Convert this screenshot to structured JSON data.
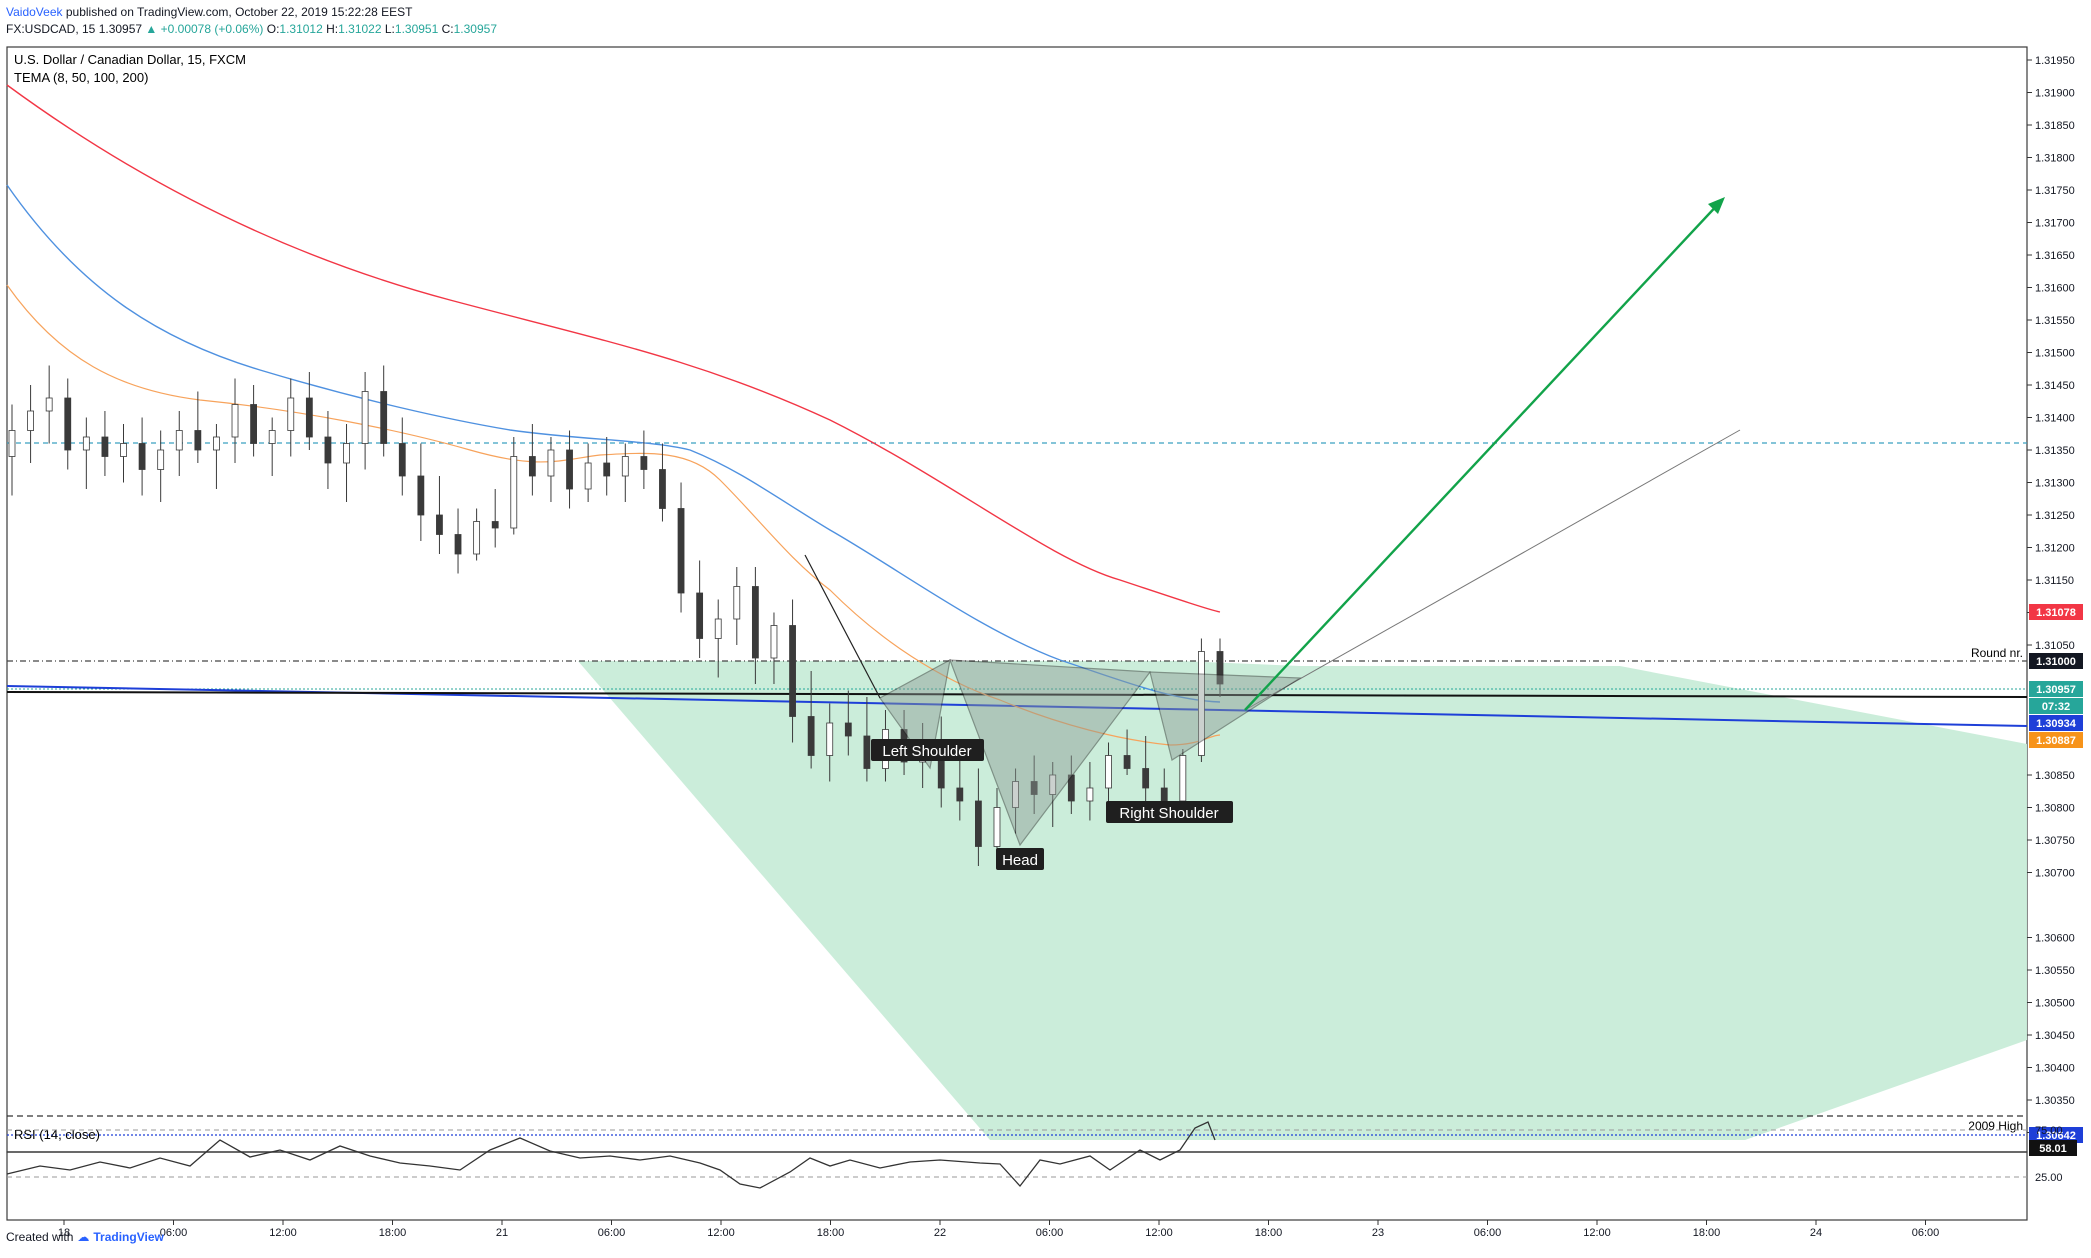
{
  "header": {
    "author": "VaidoVeek",
    "published": "published on TradingView.com, October 22, 2019 15:22:28 EEST",
    "symbol_line_prefix": "FX:USDCAD, 15  1.30957",
    "change": "▲ +0.00078 (+0.06%)",
    "ohlc_open_label": "O:",
    "ohlc_open": "1.31012",
    "ohlc_high_label": "H:",
    "ohlc_high": "1.31022",
    "ohlc_low_label": "L:",
    "ohlc_low": "1.30951",
    "ohlc_close_label": "C:",
    "ohlc_close": "1.30957"
  },
  "legend": {
    "title": "U.S. Dollar / Canadian Dollar, 15, FXCM",
    "indicator": "TEMA (8, 50, 100, 200)"
  },
  "rsi_label": "RSI (14, close)",
  "footer": {
    "created": "Created with",
    "brand": "TradingView"
  },
  "colors": {
    "tema200": "#f23645",
    "tema100": "#4f91e0",
    "tema50": "#f7a35c",
    "bull": "#26a69a",
    "bear": "#ef5350",
    "candle": "#3a3a3a",
    "zone": "#c8ecd8",
    "arrow": "#12a34a",
    "blueline": "#1e3fd8"
  },
  "annotations": {
    "left_shoulder": "Left Shoulder",
    "head": "Head",
    "right_shoulder": "Right Shoulder",
    "round_nr": "Round nr.",
    "high_2009": "2009 High"
  },
  "chart_data": {
    "type": "candlestick",
    "title": "U.S. Dollar / Canadian Dollar, 15, FXCM",
    "y_ticks": [
      "1.31950",
      "1.31900",
      "1.31850",
      "1.31800",
      "1.31750",
      "1.31700",
      "1.31650",
      "1.31600",
      "1.31550",
      "1.31500",
      "1.31450",
      "1.31400",
      "1.31350",
      "1.31300",
      "1.31250",
      "1.31200",
      "1.31150",
      "1.31100",
      "1.31050",
      "1.30850",
      "1.30800",
      "1.30750",
      "1.30700",
      "1.30600",
      "1.30550",
      "1.30500",
      "1.30450",
      "1.30400",
      "1.30350",
      "1.30300"
    ],
    "ylim": [
      1.3027,
      1.3197
    ],
    "x_ticks": [
      "18",
      "06:00",
      "12:00",
      "18:00",
      "21",
      "06:00",
      "12:00",
      "18:00",
      "22",
      "06:00",
      "12:00",
      "18:00",
      "23",
      "06:00",
      "12:00",
      "18:00",
      "24",
      "06:00"
    ],
    "price_labels": [
      {
        "value": "1.31078",
        "color": "#f23645"
      },
      {
        "value": "1.31000",
        "color": "#131722"
      },
      {
        "value": "1.30957",
        "color": "#26a69a"
      },
      {
        "value": "07:32",
        "color": "#26a69a"
      },
      {
        "value": "1.30934",
        "color": "#1e3fd8"
      },
      {
        "value": "1.30887",
        "color": "#f7931a"
      },
      {
        "value": "1.30642",
        "color": "#1e3fd8"
      }
    ],
    "levels": [
      {
        "name": "Round nr.",
        "value": 1.31
      },
      {
        "name": "2009 High",
        "value": 1.30662
      },
      {
        "name": "blue dotted",
        "value": 1.30642
      },
      {
        "name": "cyan dashed",
        "value": 1.31343
      },
      {
        "name": "green dotted",
        "value": 1.30957
      }
    ],
    "candles": [
      [
        1.3134,
        1.3142,
        1.3128,
        1.3138
      ],
      [
        1.3138,
        1.3145,
        1.3133,
        1.3141
      ],
      [
        1.3141,
        1.3148,
        1.3136,
        1.3143
      ],
      [
        1.3143,
        1.3146,
        1.3132,
        1.3135
      ],
      [
        1.3135,
        1.314,
        1.3129,
        1.3137
      ],
      [
        1.3137,
        1.3141,
        1.3131,
        1.3134
      ],
      [
        1.3134,
        1.3139,
        1.313,
        1.3136
      ],
      [
        1.3136,
        1.314,
        1.3128,
        1.3132
      ],
      [
        1.3132,
        1.3138,
        1.3127,
        1.3135
      ],
      [
        1.3135,
        1.3141,
        1.3131,
        1.3138
      ],
      [
        1.3138,
        1.3144,
        1.3133,
        1.3135
      ],
      [
        1.3135,
        1.3139,
        1.3129,
        1.3137
      ],
      [
        1.3137,
        1.3146,
        1.3133,
        1.3142
      ],
      [
        1.3142,
        1.3145,
        1.3134,
        1.3136
      ],
      [
        1.3136,
        1.314,
        1.3131,
        1.3138
      ],
      [
        1.3138,
        1.3146,
        1.3134,
        1.3143
      ],
      [
        1.3143,
        1.3147,
        1.3135,
        1.3137
      ],
      [
        1.3137,
        1.3141,
        1.3129,
        1.3133
      ],
      [
        1.3133,
        1.3139,
        1.3127,
        1.3136
      ],
      [
        1.3136,
        1.3147,
        1.3132,
        1.3144
      ],
      [
        1.3144,
        1.3148,
        1.3134,
        1.3136
      ],
      [
        1.3136,
        1.314,
        1.3128,
        1.3131
      ],
      [
        1.3131,
        1.3136,
        1.3121,
        1.3125
      ],
      [
        1.3125,
        1.3131,
        1.3119,
        1.3122
      ],
      [
        1.3122,
        1.3126,
        1.3116,
        1.3119
      ],
      [
        1.3119,
        1.3126,
        1.3118,
        1.3124
      ],
      [
        1.3124,
        1.3129,
        1.312,
        1.3123
      ],
      [
        1.3123,
        1.3137,
        1.3122,
        1.3134
      ],
      [
        1.3134,
        1.3139,
        1.3128,
        1.3131
      ],
      [
        1.3131,
        1.3137,
        1.3127,
        1.3135
      ],
      [
        1.3135,
        1.3138,
        1.3126,
        1.3129
      ],
      [
        1.3129,
        1.3136,
        1.3127,
        1.3133
      ],
      [
        1.3133,
        1.3137,
        1.3128,
        1.3131
      ],
      [
        1.3131,
        1.3136,
        1.3127,
        1.3134
      ],
      [
        1.3134,
        1.3138,
        1.3129,
        1.3132
      ],
      [
        1.3132,
        1.3136,
        1.3124,
        1.3126
      ],
      [
        1.3126,
        1.313,
        1.311,
        1.3113
      ],
      [
        1.3113,
        1.3118,
        1.3103,
        1.3106
      ],
      [
        1.3106,
        1.3112,
        1.31,
        1.3109
      ],
      [
        1.3109,
        1.3117,
        1.3105,
        1.3114
      ],
      [
        1.3114,
        1.3117,
        1.3099,
        1.3103
      ],
      [
        1.3103,
        1.311,
        1.3099,
        1.3108
      ],
      [
        1.3108,
        1.3112,
        1.309,
        1.3094
      ],
      [
        1.3094,
        1.3101,
        1.3086,
        1.3088
      ],
      [
        1.3088,
        1.3096,
        1.3084,
        1.3093
      ],
      [
        1.3093,
        1.3098,
        1.3088,
        1.3091
      ],
      [
        1.3091,
        1.3097,
        1.3084,
        1.3086
      ],
      [
        1.3086,
        1.3095,
        1.3084,
        1.3092
      ],
      [
        1.3092,
        1.3095,
        1.3085,
        1.3087
      ],
      [
        1.3087,
        1.3093,
        1.3083,
        1.309
      ],
      [
        1.309,
        1.3094,
        1.308,
        1.3083
      ],
      [
        1.3083,
        1.3089,
        1.3078,
        1.3081
      ],
      [
        1.3081,
        1.3086,
        1.3071,
        1.3074
      ],
      [
        1.3074,
        1.3083,
        1.3072,
        1.308
      ],
      [
        1.308,
        1.3086,
        1.3076,
        1.3084
      ],
      [
        1.3084,
        1.3088,
        1.3079,
        1.3082
      ],
      [
        1.3082,
        1.3087,
        1.3077,
        1.3085
      ],
      [
        1.3085,
        1.3088,
        1.3079,
        1.3081
      ],
      [
        1.3081,
        1.3087,
        1.3078,
        1.3083
      ],
      [
        1.3083,
        1.309,
        1.308,
        1.3088
      ],
      [
        1.3088,
        1.3092,
        1.3085,
        1.3086
      ],
      [
        1.3086,
        1.3091,
        1.308,
        1.3083
      ],
      [
        1.3083,
        1.3086,
        1.3078,
        1.3081
      ],
      [
        1.3081,
        1.3089,
        1.3079,
        1.3088
      ],
      [
        1.3088,
        1.3106,
        1.3087,
        1.3104
      ],
      [
        1.3104,
        1.3106,
        1.3097,
        1.3099
      ]
    ],
    "rsi_levels": [
      70,
      30
    ],
    "rsi_ticks": [
      "75.00",
      "58.01",
      "25.00"
    ],
    "rsi_last": "58.01"
  }
}
